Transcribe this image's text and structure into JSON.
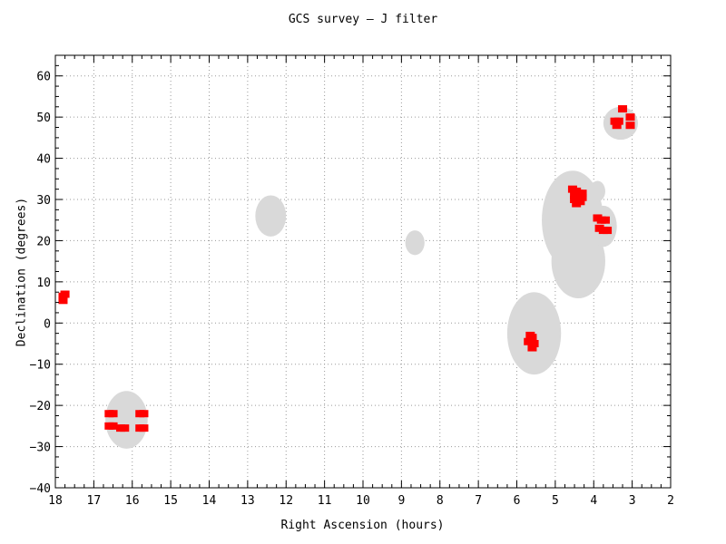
{
  "chart_data": {
    "type": "scatter",
    "title": "GCS survey — J filter",
    "xlabel": "Right Ascension (hours)",
    "ylabel": "Declination (degrees)",
    "xlim": [
      18,
      2
    ],
    "ylim": [
      -40,
      65
    ],
    "x_reversed": true,
    "grid": true,
    "xticks": [
      18,
      17,
      16,
      15,
      14,
      13,
      12,
      11,
      10,
      9,
      8,
      7,
      6,
      5,
      4,
      3,
      2
    ],
    "yticks": [
      -40,
      -30,
      -20,
      -10,
      0,
      10,
      20,
      30,
      40,
      50,
      60
    ],
    "regions": {
      "color": "#d9d9d9",
      "items": [
        {
          "ra": 16.15,
          "dec": -23.5,
          "dra": 0.55,
          "ddec": 7
        },
        {
          "ra": 12.4,
          "dec": 26.0,
          "dra": 0.4,
          "ddec": 5
        },
        {
          "ra": 8.65,
          "dec": 19.5,
          "dra": 0.25,
          "ddec": 3
        },
        {
          "ra": 5.55,
          "dec": -2.5,
          "dra": 0.7,
          "ddec": 10
        },
        {
          "ra": 4.55,
          "dec": 25.0,
          "dra": 0.8,
          "ddec": 12
        },
        {
          "ra": 4.4,
          "dec": 15.0,
          "dra": 0.7,
          "ddec": 9
        },
        {
          "ra": 3.9,
          "dec": 32.0,
          "dra": 0.2,
          "ddec": 2.5
        },
        {
          "ra": 3.75,
          "dec": 23.5,
          "dra": 0.35,
          "ddec": 5
        },
        {
          "ra": 3.3,
          "dec": 48.5,
          "dra": 0.45,
          "ddec": 4
        }
      ]
    },
    "series": [
      {
        "color": "#ff0000",
        "x": [
          17.8,
          17.8,
          17.75,
          16.6,
          16.5,
          16.6,
          16.5,
          16.3,
          16.2,
          15.8,
          15.7,
          15.8,
          15.7,
          5.65,
          5.6,
          5.7,
          5.55,
          5.6,
          5.6,
          4.55,
          4.45,
          4.5,
          4.4,
          4.3,
          4.5,
          4.45,
          4.35,
          4.3,
          4.4,
          3.9,
          3.8,
          3.7,
          3.85,
          3.75,
          3.65,
          3.45,
          3.35,
          3.4,
          3.25,
          3.05,
          3.05
        ],
        "y": [
          5.5,
          6.5,
          7.0,
          -22.0,
          -22.0,
          -25.0,
          -25.0,
          -25.5,
          -25.5,
          -22.0,
          -22.0,
          -25.5,
          -25.5,
          -3.0,
          -4.0,
          -4.5,
          -5.0,
          -6.0,
          -3.5,
          32.5,
          32.0,
          31.0,
          30.5,
          31.5,
          30.0,
          29.0,
          29.5,
          30.5,
          31.5,
          25.5,
          25.0,
          25.0,
          23.0,
          22.5,
          22.5,
          49.0,
          49.0,
          48.0,
          52.0,
          50.0,
          48.0
        ]
      }
    ]
  }
}
